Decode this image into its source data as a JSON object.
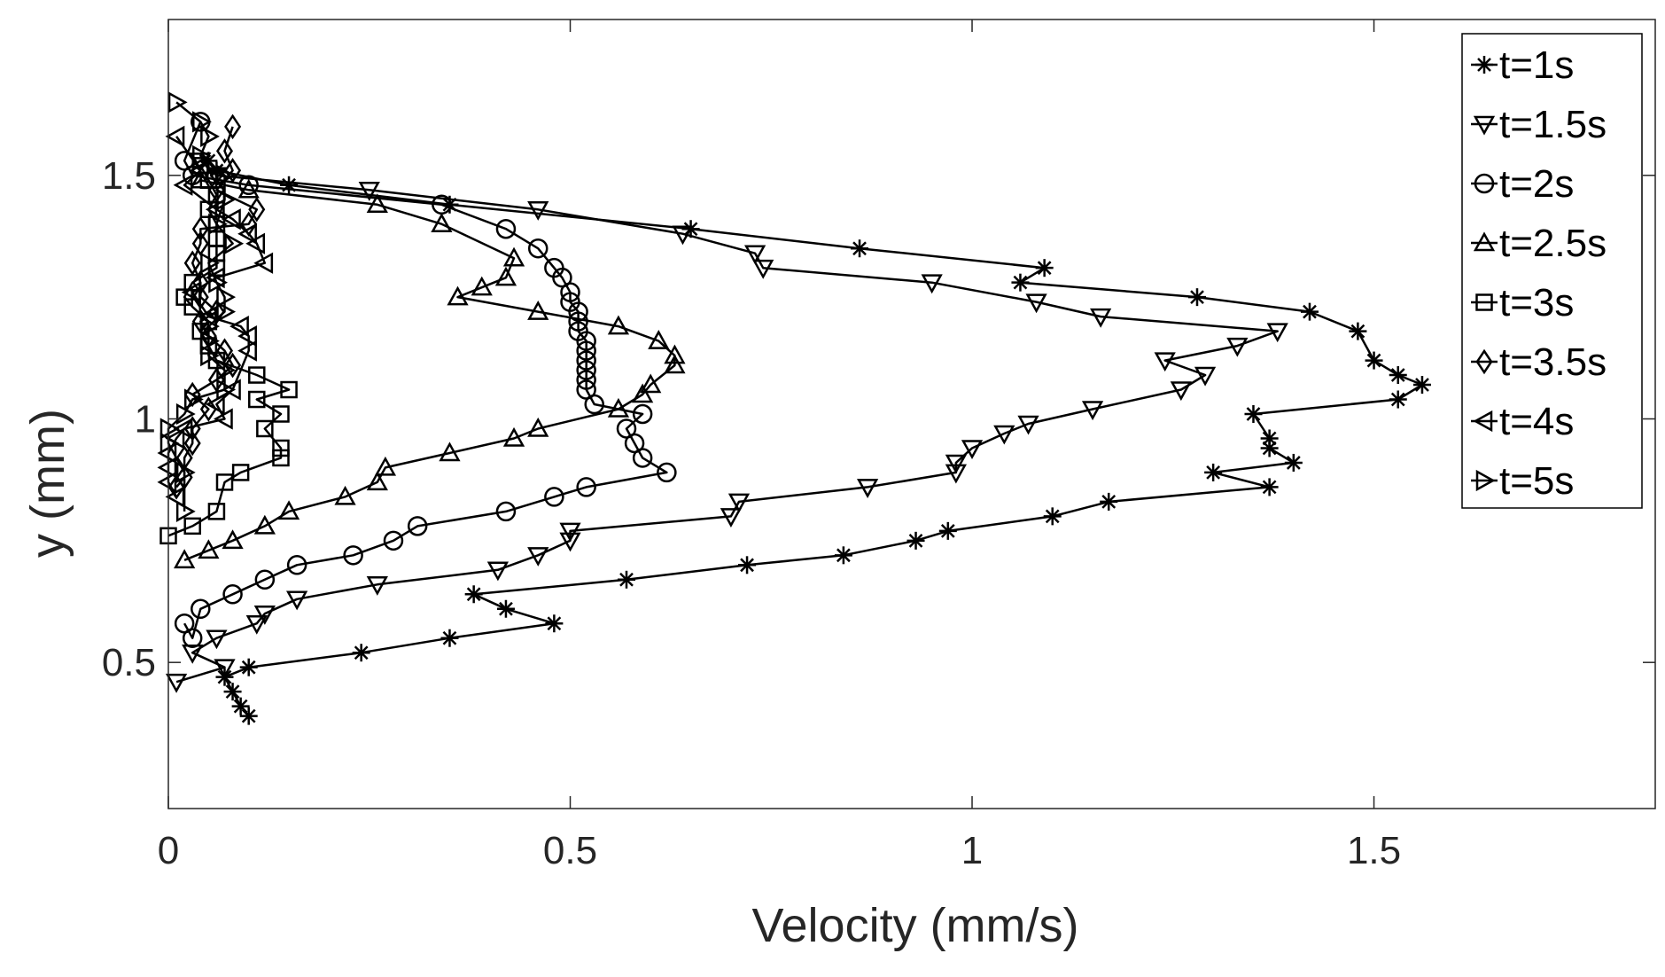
{
  "chart_data": {
    "type": "line",
    "title": "",
    "xlabel": "Velocity (mm/s)",
    "ylabel": "y (mm)",
    "xlim": [
      0,
      1.85
    ],
    "ylim": [
      0.2,
      1.82
    ],
    "xticks": [
      0,
      0.5,
      1,
      1.5
    ],
    "xtick_labels": [
      "0",
      "0.5",
      "1",
      "1.5"
    ],
    "yticks": [
      0.5,
      1,
      1.5
    ],
    "ytick_labels": [
      "0.5",
      "1",
      "1.5"
    ],
    "grid": false,
    "legend_position": "top-right",
    "colors": {
      "line": "#000000",
      "axis": "#262626",
      "background": "#ffffff"
    },
    "series": [
      {
        "name": "t=1s",
        "marker": "asterisk",
        "points": [
          [
            0.1,
            0.39
          ],
          [
            0.09,
            0.41
          ],
          [
            0.08,
            0.44
          ],
          [
            0.07,
            0.47
          ],
          [
            0.1,
            0.49
          ],
          [
            0.24,
            0.52
          ],
          [
            0.35,
            0.55
          ],
          [
            0.48,
            0.58
          ],
          [
            0.42,
            0.61
          ],
          [
            0.38,
            0.64
          ],
          [
            0.57,
            0.67
          ],
          [
            0.72,
            0.7
          ],
          [
            0.84,
            0.72
          ],
          [
            0.93,
            0.75
          ],
          [
            0.97,
            0.77
          ],
          [
            1.1,
            0.8
          ],
          [
            1.17,
            0.83
          ],
          [
            1.37,
            0.86
          ],
          [
            1.3,
            0.89
          ],
          [
            1.4,
            0.91
          ],
          [
            1.37,
            0.94
          ],
          [
            1.37,
            0.96
          ],
          [
            1.35,
            1.01
          ],
          [
            1.53,
            1.04
          ],
          [
            1.56,
            1.07
          ],
          [
            1.53,
            1.09
          ],
          [
            1.5,
            1.12
          ],
          [
            1.48,
            1.18
          ],
          [
            1.42,
            1.22
          ],
          [
            1.28,
            1.25
          ],
          [
            1.06,
            1.28
          ],
          [
            1.09,
            1.31
          ],
          [
            0.86,
            1.35
          ],
          [
            0.65,
            1.39
          ],
          [
            0.35,
            1.44
          ],
          [
            0.15,
            1.48
          ],
          [
            0.06,
            1.51
          ],
          [
            0.05,
            1.53
          ]
        ]
      },
      {
        "name": "t=1.5s",
        "marker": "triangle-down",
        "points": [
          [
            0.01,
            0.46
          ],
          [
            0.07,
            0.49
          ],
          [
            0.03,
            0.52
          ],
          [
            0.06,
            0.55
          ],
          [
            0.11,
            0.58
          ],
          [
            0.12,
            0.6
          ],
          [
            0.16,
            0.63
          ],
          [
            0.26,
            0.66
          ],
          [
            0.41,
            0.69
          ],
          [
            0.46,
            0.72
          ],
          [
            0.5,
            0.75
          ],
          [
            0.5,
            0.77
          ],
          [
            0.7,
            0.8
          ],
          [
            0.71,
            0.83
          ],
          [
            0.87,
            0.86
          ],
          [
            0.98,
            0.89
          ],
          [
            0.98,
            0.91
          ],
          [
            1.0,
            0.94
          ],
          [
            1.04,
            0.97
          ],
          [
            1.07,
            0.99
          ],
          [
            1.15,
            1.02
          ],
          [
            1.26,
            1.06
          ],
          [
            1.29,
            1.09
          ],
          [
            1.24,
            1.12
          ],
          [
            1.33,
            1.15
          ],
          [
            1.38,
            1.18
          ],
          [
            1.16,
            1.21
          ],
          [
            1.08,
            1.24
          ],
          [
            0.95,
            1.28
          ],
          [
            0.74,
            1.31
          ],
          [
            0.73,
            1.34
          ],
          [
            0.64,
            1.38
          ],
          [
            0.46,
            1.43
          ],
          [
            0.25,
            1.47
          ],
          [
            0.06,
            1.5
          ],
          [
            0.04,
            1.53
          ]
        ]
      },
      {
        "name": "t=2s",
        "marker": "circle",
        "points": [
          [
            0.02,
            0.58
          ],
          [
            0.03,
            0.55
          ],
          [
            0.04,
            0.61
          ],
          [
            0.08,
            0.64
          ],
          [
            0.12,
            0.67
          ],
          [
            0.16,
            0.7
          ],
          [
            0.23,
            0.72
          ],
          [
            0.28,
            0.75
          ],
          [
            0.31,
            0.78
          ],
          [
            0.42,
            0.81
          ],
          [
            0.48,
            0.84
          ],
          [
            0.52,
            0.86
          ],
          [
            0.62,
            0.89
          ],
          [
            0.59,
            0.92
          ],
          [
            0.58,
            0.95
          ],
          [
            0.57,
            0.98
          ],
          [
            0.59,
            1.01
          ],
          [
            0.53,
            1.03
          ],
          [
            0.52,
            1.06
          ],
          [
            0.52,
            1.08
          ],
          [
            0.52,
            1.1
          ],
          [
            0.52,
            1.12
          ],
          [
            0.52,
            1.14
          ],
          [
            0.52,
            1.16
          ],
          [
            0.51,
            1.18
          ],
          [
            0.51,
            1.2
          ],
          [
            0.51,
            1.22
          ],
          [
            0.5,
            1.24
          ],
          [
            0.5,
            1.26
          ],
          [
            0.49,
            1.29
          ],
          [
            0.48,
            1.31
          ],
          [
            0.46,
            1.35
          ],
          [
            0.42,
            1.39
          ],
          [
            0.34,
            1.44
          ],
          [
            0.1,
            1.48
          ],
          [
            0.03,
            1.5
          ],
          [
            0.02,
            1.53
          ],
          [
            0.04,
            1.61
          ]
        ]
      },
      {
        "name": "t=2.5s",
        "marker": "triangle-up",
        "points": [
          [
            0.02,
            0.71
          ],
          [
            0.05,
            0.73
          ],
          [
            0.08,
            0.75
          ],
          [
            0.12,
            0.78
          ],
          [
            0.15,
            0.81
          ],
          [
            0.22,
            0.84
          ],
          [
            0.26,
            0.87
          ],
          [
            0.27,
            0.9
          ],
          [
            0.35,
            0.93
          ],
          [
            0.43,
            0.96
          ],
          [
            0.46,
            0.98
          ],
          [
            0.56,
            1.02
          ],
          [
            0.59,
            1.05
          ],
          [
            0.6,
            1.07
          ],
          [
            0.63,
            1.11
          ],
          [
            0.63,
            1.13
          ],
          [
            0.61,
            1.16
          ],
          [
            0.56,
            1.19
          ],
          [
            0.46,
            1.22
          ],
          [
            0.36,
            1.25
          ],
          [
            0.39,
            1.27
          ],
          [
            0.42,
            1.29
          ],
          [
            0.43,
            1.33
          ],
          [
            0.34,
            1.4
          ],
          [
            0.26,
            1.44
          ],
          [
            0.1,
            1.47
          ],
          [
            0.04,
            1.49
          ]
        ]
      },
      {
        "name": "t=3s",
        "marker": "square",
        "points": [
          [
            0.0,
            0.76
          ],
          [
            0.03,
            0.78
          ],
          [
            0.06,
            0.81
          ],
          [
            0.07,
            0.87
          ],
          [
            0.09,
            0.89
          ],
          [
            0.14,
            0.92
          ],
          [
            0.14,
            0.94
          ],
          [
            0.12,
            0.98
          ],
          [
            0.14,
            1.01
          ],
          [
            0.11,
            1.04
          ],
          [
            0.15,
            1.06
          ],
          [
            0.11,
            1.09
          ],
          [
            0.06,
            1.12
          ],
          [
            0.05,
            1.15
          ],
          [
            0.04,
            1.18
          ],
          [
            0.05,
            1.2
          ],
          [
            0.03,
            1.23
          ],
          [
            0.02,
            1.25
          ],
          [
            0.03,
            1.28
          ],
          [
            0.06,
            1.31
          ],
          [
            0.06,
            1.34
          ],
          [
            0.06,
            1.37
          ],
          [
            0.06,
            1.4
          ],
          [
            0.05,
            1.43
          ],
          [
            0.06,
            1.46
          ],
          [
            0.05,
            1.49
          ],
          [
            0.04,
            1.52
          ]
        ]
      },
      {
        "name": "t=3.5s",
        "marker": "diamond",
        "points": [
          [
            0.01,
            0.86
          ],
          [
            0.02,
            0.88
          ],
          [
            0.02,
            0.92
          ],
          [
            0.03,
            0.95
          ],
          [
            0.03,
            0.98
          ],
          [
            0.05,
            1.02
          ],
          [
            0.03,
            1.05
          ],
          [
            0.06,
            1.08
          ],
          [
            0.08,
            1.11
          ],
          [
            0.07,
            1.14
          ],
          [
            0.05,
            1.17
          ],
          [
            0.04,
            1.2
          ],
          [
            0.06,
            1.22
          ],
          [
            0.04,
            1.25
          ],
          [
            0.04,
            1.28
          ],
          [
            0.03,
            1.32
          ],
          [
            0.04,
            1.36
          ],
          [
            0.04,
            1.39
          ],
          [
            0.1,
            1.4
          ],
          [
            0.11,
            1.43
          ],
          [
            0.06,
            1.47
          ],
          [
            0.08,
            1.51
          ],
          [
            0.07,
            1.55
          ],
          [
            0.08,
            1.6
          ]
        ]
      },
      {
        "name": "t=4s",
        "marker": "triangle-left",
        "points": [
          [
            0.01,
            0.84
          ],
          [
            0.0,
            0.87
          ],
          [
            0.0,
            0.9
          ],
          [
            0.0,
            0.93
          ],
          [
            0.01,
            0.96
          ],
          [
            0.02,
            0.98
          ],
          [
            0.07,
            1.0
          ],
          [
            0.06,
            1.03
          ],
          [
            0.08,
            1.06
          ],
          [
            0.1,
            1.14
          ],
          [
            0.1,
            1.17
          ],
          [
            0.09,
            1.19
          ],
          [
            0.05,
            1.21
          ],
          [
            0.03,
            1.26
          ],
          [
            0.06,
            1.29
          ],
          [
            0.12,
            1.32
          ],
          [
            0.11,
            1.36
          ],
          [
            0.1,
            1.38
          ],
          [
            0.08,
            1.41
          ],
          [
            0.06,
            1.43
          ],
          [
            0.02,
            1.48
          ],
          [
            0.04,
            1.51
          ],
          [
            0.01,
            1.58
          ]
        ]
      },
      {
        "name": "t=5s",
        "marker": "triangle-right",
        "points": [
          [
            0.02,
            0.81
          ],
          [
            0.02,
            0.89
          ],
          [
            0.0,
            0.95
          ],
          [
            0.0,
            0.98
          ],
          [
            0.02,
            1.01
          ],
          [
            0.03,
            1.04
          ],
          [
            0.07,
            1.06
          ],
          [
            0.07,
            1.1
          ],
          [
            0.05,
            1.13
          ],
          [
            0.05,
            1.16
          ],
          [
            0.05,
            1.19
          ],
          [
            0.07,
            1.22
          ],
          [
            0.07,
            1.25
          ],
          [
            0.06,
            1.28
          ],
          [
            0.05,
            1.32
          ],
          [
            0.08,
            1.36
          ],
          [
            0.06,
            1.4
          ],
          [
            0.07,
            1.45
          ],
          [
            0.07,
            1.5
          ],
          [
            0.04,
            1.54
          ],
          [
            0.05,
            1.58
          ],
          [
            0.04,
            1.61
          ],
          [
            0.01,
            1.65
          ]
        ]
      }
    ]
  }
}
